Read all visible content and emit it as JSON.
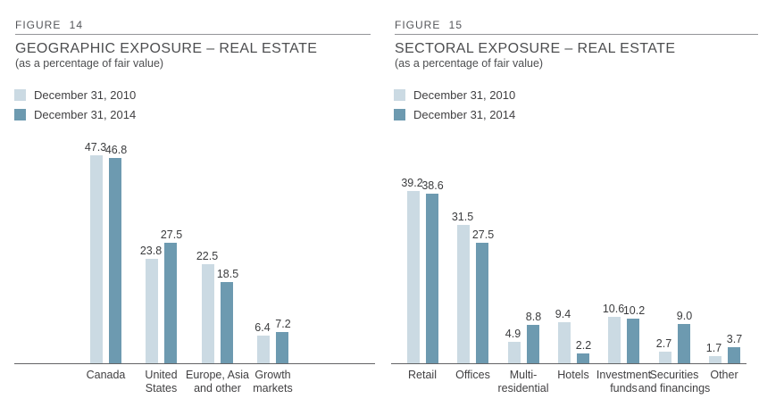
{
  "colors": {
    "series_2010": "#cbdae3",
    "series_2014": "#6d9ab0",
    "axis_line": "#636466",
    "rule_line": "#939598",
    "text_dark": "#414042",
    "text_gray": "#54565a",
    "background": "#ffffff"
  },
  "chart_data": [
    {
      "type": "bar",
      "figure_label": "FIGURE 14",
      "title": "GEOGRAPHIC EXPOSURE – REAL ESTATE",
      "subtitle": "(as a percentage of fair value)",
      "categories": [
        "Canada",
        "United\nStates",
        "Europe, Asia\nand other",
        "Growth\nmarkets"
      ],
      "series": [
        {
          "name": "December 31, 2010",
          "color": "#cbdae3",
          "values": [
            47.3,
            23.8,
            22.5,
            6.4
          ]
        },
        {
          "name": "December 31, 2014",
          "color": "#6d9ab0",
          "values": [
            46.8,
            27.5,
            18.5,
            7.2
          ]
        }
      ],
      "ylabel": "",
      "xlabel": "",
      "ylim": [
        0,
        50
      ],
      "grid": false,
      "value_labels": true,
      "legend_position": "top-left"
    },
    {
      "type": "bar",
      "figure_label": "FIGURE 15",
      "title": "SECTORAL EXPOSURE – REAL ESTATE",
      "subtitle": "(as a percentage of fair value)",
      "categories": [
        "Retail",
        "Offices",
        "Multi-\nresidential",
        "Hotels",
        "Investment\nfunds",
        "Securities\nand financings",
        "Other"
      ],
      "series": [
        {
          "name": "December 31, 2010",
          "color": "#cbdae3",
          "values": [
            39.2,
            31.5,
            4.9,
            9.4,
            10.6,
            2.7,
            1.7
          ]
        },
        {
          "name": "December 31, 2014",
          "color": "#6d9ab0",
          "values": [
            38.6,
            27.5,
            8.8,
            2.2,
            10.2,
            9.0,
            3.7
          ]
        }
      ],
      "ylabel": "",
      "xlabel": "",
      "ylim": [
        0,
        50
      ],
      "grid": false,
      "value_labels": true,
      "legend_position": "top-left"
    }
  ]
}
